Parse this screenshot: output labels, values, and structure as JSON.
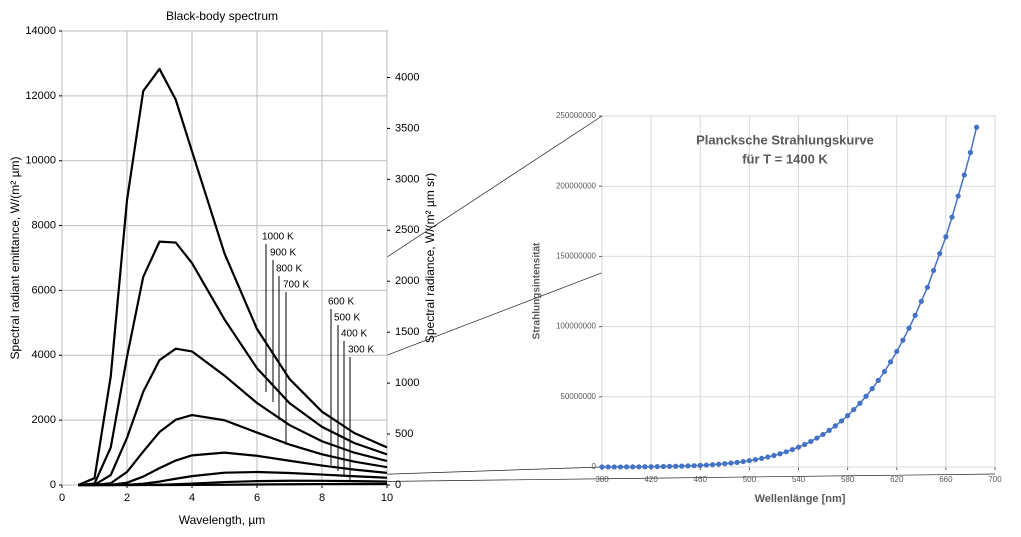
{
  "chart_data": [
    {
      "type": "line",
      "title": "Black-body spectrum",
      "x_label": "Wavelength, µm",
      "y_label": "Spectral radiant emittance, W/(m² µm)",
      "y2_label": "Spectral radiance, W/(m² µm sr)",
      "x": [
        0.5,
        1,
        1.5,
        2,
        2.5,
        3,
        3.5,
        4,
        5,
        6,
        7,
        8,
        9,
        10
      ],
      "series": [
        {
          "name": "1000 K",
          "color": "#000000",
          "values": [
            0,
            210,
            3350,
            8780,
            12150,
            12830,
            11880,
            10290,
            7140,
            4810,
            3270,
            2260,
            1600,
            1160
          ]
        },
        {
          "name": "900 K",
          "color": "#000000",
          "values": [
            0,
            43,
            1158,
            3952,
            6419,
            7505,
            7476,
            6844,
            5105,
            3602,
            2525,
            1793,
            1291,
            945
          ]
        },
        {
          "name": "800 K",
          "color": "#000000",
          "values": [
            0,
            6,
            305,
            1454,
            2877,
            3850,
            4204,
            4119,
            3372,
            2528,
            1848,
            1349,
            995,
            741
          ]
        },
        {
          "name": "700 K",
          "color": "#000000",
          "values": [
            0,
            0,
            55,
            402,
            1031,
            1633,
            2013,
            2156,
            1997,
            1617,
            1248,
            948,
            719,
            550
          ]
        },
        {
          "name": "600 K",
          "color": "#000000",
          "values": [
            0,
            0,
            6,
            72,
            260,
            520,
            755,
            914,
            998,
            901,
            748,
            600,
            474,
            374
          ]
        },
        {
          "name": "500 K",
          "color": "#000000",
          "values": [
            0,
            0,
            0,
            7,
            38,
            105,
            192,
            274,
            380,
            401,
            371,
            322,
            270,
            223
          ]
        },
        {
          "name": "400 K",
          "color": "#000000",
          "values": [
            0,
            0,
            0,
            0,
            2,
            10,
            25,
            45,
            90,
            120,
            131,
            129,
            119,
            105
          ]
        },
        {
          "name": "300 K",
          "color": "#000000",
          "values": [
            0,
            0,
            0,
            0,
            0,
            0,
            1,
            2,
            8,
            16,
            24,
            29,
            31,
            31
          ]
        }
      ],
      "xlim": [
        0,
        10
      ],
      "xticks": [
        0,
        2,
        4,
        6,
        8,
        10
      ],
      "ylim": [
        0,
        14000
      ],
      "yticks": [
        0,
        2000,
        4000,
        6000,
        8000,
        10000,
        12000,
        14000
      ],
      "y2lim": [
        0,
        4456
      ],
      "y2ticks": [
        0,
        500,
        1000,
        1500,
        2000,
        2500,
        3000,
        3500,
        4000
      ],
      "grid": true
    },
    {
      "type": "line",
      "title": "Plancksche Strahlungskurve",
      "subtitle": "für T = 1400 K",
      "x_label": "Wellenlänge [nm]",
      "y_label": "Strahlungsintensität",
      "color": "#4472c4",
      "markers": true,
      "x": [
        380,
        385,
        390,
        395,
        400,
        405,
        410,
        415,
        420,
        425,
        430,
        435,
        440,
        445,
        450,
        455,
        460,
        465,
        470,
        475,
        480,
        485,
        490,
        495,
        500,
        505,
        510,
        515,
        520,
        525,
        530,
        535,
        540,
        545,
        550,
        555,
        560,
        565,
        570,
        575,
        580,
        585,
        590,
        595,
        600,
        605,
        610,
        615,
        620,
        625,
        630,
        635,
        640,
        645,
        650,
        655,
        660,
        665,
        670,
        675,
        680,
        685
      ],
      "values": [
        27000,
        36000,
        47500,
        62200,
        80900,
        104000,
        134000,
        170000,
        215000,
        271000,
        338000,
        420000,
        519000,
        638000,
        780000,
        948000,
        1150000,
        1380000,
        1660000,
        1980000,
        2350000,
        2790000,
        3290000,
        3860000,
        4520000,
        5270000,
        6120000,
        7100000,
        8190000,
        9430000,
        10800000,
        12400000,
        14100000,
        16000000,
        18200000,
        20600000,
        23200000,
        26100000,
        29300000,
        32800000,
        36600000,
        40900000,
        45400000,
        50400000,
        55800000,
        61700000,
        68000000,
        74900000,
        82300000,
        90300000,
        98900000,
        108000000,
        118000000,
        128000000,
        140000000,
        152000000,
        164000000,
        178000000,
        193000000,
        208000000,
        224000000,
        242000000
      ],
      "xlim": [
        380,
        700
      ],
      "xticks": [
        380,
        420,
        460,
        500,
        540,
        580,
        620,
        660,
        700
      ],
      "ylim": [
        0,
        250000000
      ],
      "yticks": [
        0,
        50000000,
        100000000,
        150000000,
        200000000,
        250000000
      ],
      "grid": true
    }
  ]
}
